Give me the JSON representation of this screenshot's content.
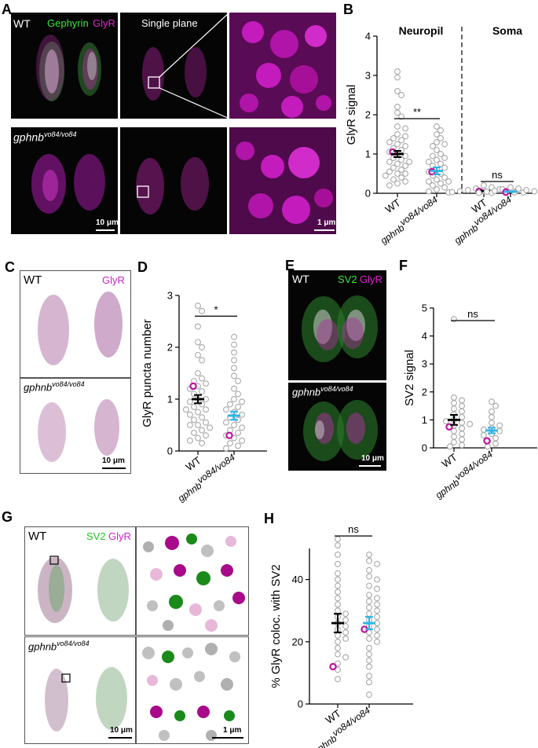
{
  "panels": {
    "a": {
      "letter": "A",
      "wt": "WT",
      "gephyrin": "Gephyrin",
      "glyr": "GlyR",
      "single_plane": "Single plane",
      "mutant": "gphnb",
      "mutant_sup": "vo84/vo84",
      "scale1": "10 μm",
      "scale2": "1 μm"
    },
    "b": {
      "letter": "B"
    },
    "c": {
      "letter": "C",
      "wt": "WT",
      "glyr": "GlyR",
      "mutant": "gphnb",
      "mutant_sup": "vo84/vo84",
      "scale": "10 μm"
    },
    "d": {
      "letter": "D"
    },
    "e": {
      "letter": "E",
      "wt": "WT",
      "sv2": "SV2",
      "glyr": "GlyR",
      "mutant": "gphnb",
      "mutant_sup": "vo84/vo84",
      "scale": "10 μm"
    },
    "f": {
      "letter": "F"
    },
    "g": {
      "letter": "G",
      "wt": "WT",
      "sv2": "SV2",
      "glyr": "GlyR",
      "mutant": "gphnb",
      "mutant_sup": "vo84/vo84",
      "scale1": "10 μm",
      "scale2": "1 μm"
    },
    "h": {
      "letter": "H"
    }
  },
  "colors": {
    "gray": "#a8a8a8",
    "magenta": "#c0139f",
    "cyan": "#29b6e6",
    "black": "#000000",
    "green": "#2ecc2e"
  },
  "chart_data": [
    {
      "id": "B",
      "type": "scatter",
      "ylabel": "GlyR signal",
      "ylim": [
        0,
        4
      ],
      "yticks": [
        0,
        1,
        2,
        3,
        4
      ],
      "regions": [
        {
          "label": "Neuropil"
        },
        {
          "label": "Soma"
        }
      ],
      "groups": [
        {
          "label": "WT",
          "mean": 1.0,
          "sem": 0.08,
          "color": "#000000",
          "highlight": 1.05,
          "values": [
            3.1,
            2.95,
            2.6,
            2.5,
            2.2,
            2.05,
            1.95,
            1.7,
            1.65,
            1.5,
            1.45,
            1.4,
            1.35,
            1.3,
            1.25,
            1.2,
            1.15,
            1.1,
            1.05,
            1.0,
            0.95,
            0.9,
            0.85,
            0.8,
            0.8,
            0.75,
            0.7,
            0.65,
            0.6,
            0.55,
            0.5,
            0.5,
            0.45,
            0.4,
            0.35,
            0.3,
            0.25,
            0.2
          ]
        },
        {
          "label": "gphnb",
          "sup": "vo84/vo84",
          "mean": 0.57,
          "sem": 0.09,
          "color": "#29b6e6",
          "highlight": 0.55,
          "values": [
            1.7,
            1.6,
            1.5,
            1.4,
            1.3,
            1.25,
            1.2,
            1.1,
            1.0,
            0.95,
            0.9,
            0.85,
            0.8,
            0.75,
            0.7,
            0.65,
            0.6,
            0.55,
            0.5,
            0.45,
            0.4,
            0.35,
            0.3,
            0.3,
            0.25,
            0.2,
            0.15,
            0.1,
            0.05,
            0.02
          ]
        },
        {
          "label": "WT",
          "mean": 0.06,
          "sem": 0.01,
          "color": "#000000",
          "highlight": 0.05,
          "values": [
            0.2,
            0.15,
            0.12,
            0.1,
            0.08,
            0.07,
            0.06,
            0.05,
            0.04,
            0.03,
            0.02,
            0.01
          ]
        },
        {
          "label": "gphnb",
          "sup": "vo84/vo84",
          "mean": 0.04,
          "sem": 0.01,
          "color": "#29b6e6",
          "highlight": 0.03,
          "values": [
            0.15,
            0.12,
            0.1,
            0.08,
            0.06,
            0.05,
            0.04,
            0.03,
            0.02,
            0.01
          ]
        }
      ],
      "significance": [
        {
          "between": [
            0,
            1
          ],
          "label": "**",
          "y": 1.9
        },
        {
          "between": [
            2,
            3
          ],
          "label": "ns",
          "y": 0.3
        }
      ]
    },
    {
      "id": "D",
      "type": "scatter",
      "ylabel": "GlyR puncta number",
      "ylim": [
        0,
        3
      ],
      "yticks": [
        0,
        1,
        2,
        3
      ],
      "groups": [
        {
          "label": "WT",
          "mean": 1.0,
          "sem": 0.08,
          "color": "#000000",
          "highlight": 1.25,
          "values": [
            2.8,
            2.7,
            2.4,
            2.1,
            2.0,
            1.85,
            1.75,
            1.5,
            1.4,
            1.35,
            1.3,
            1.25,
            1.2,
            1.15,
            1.1,
            1.0,
            1.0,
            0.95,
            0.9,
            0.85,
            0.8,
            0.8,
            0.75,
            0.7,
            0.65,
            0.6,
            0.55,
            0.5,
            0.5,
            0.45,
            0.4,
            0.35,
            0.3,
            0.25,
            0.2,
            0.15
          ]
        },
        {
          "label": "gphnb",
          "sup": "vo84/vo84",
          "mean": 0.68,
          "sem": 0.08,
          "color": "#29b6e6",
          "highlight": 0.3,
          "values": [
            2.2,
            2.05,
            1.9,
            1.75,
            1.6,
            1.45,
            1.35,
            1.2,
            1.1,
            1.0,
            0.95,
            0.9,
            0.85,
            0.8,
            0.75,
            0.7,
            0.65,
            0.6,
            0.55,
            0.5,
            0.45,
            0.4,
            0.35,
            0.3,
            0.25,
            0.2,
            0.15,
            0.1,
            0.05
          ]
        }
      ],
      "significance": [
        {
          "between": [
            0,
            1
          ],
          "label": "*",
          "y": 2.6
        }
      ]
    },
    {
      "id": "F",
      "type": "scatter",
      "ylabel": "SV2 signal",
      "ylim": [
        0,
        5
      ],
      "yticks": [
        0,
        1,
        2,
        3,
        4,
        5
      ],
      "groups": [
        {
          "label": "WT",
          "mean": 1.0,
          "sem": 0.18,
          "color": "#000000",
          "highlight": 0.75,
          "values": [
            4.6,
            1.8,
            1.7,
            1.6,
            1.5,
            1.4,
            1.3,
            1.2,
            1.1,
            1.0,
            0.95,
            0.9,
            0.85,
            0.8,
            0.7,
            0.6,
            0.5,
            0.4,
            0.3,
            0.2,
            0.1,
            0.05
          ]
        },
        {
          "label": "gphnb",
          "sup": "vo84/vo84",
          "mean": 0.62,
          "sem": 0.1,
          "color": "#29b6e6",
          "highlight": 0.25,
          "values": [
            1.65,
            1.5,
            1.3,
            1.1,
            0.9,
            0.8,
            0.7,
            0.65,
            0.6,
            0.5,
            0.45,
            0.35,
            0.25,
            0.15,
            0.05
          ]
        }
      ],
      "significance": [
        {
          "between": [
            0,
            1
          ],
          "label": "ns",
          "y": 4.55
        }
      ]
    },
    {
      "id": "H",
      "type": "scatter",
      "ylabel": "% GlyR coloc. with SV2",
      "ylim": [
        0,
        50
      ],
      "yticks": [
        0,
        20,
        40
      ],
      "groups": [
        {
          "label": "WT",
          "mean": 26,
          "sem": 3,
          "color": "#000000",
          "highlight": 12,
          "values": [
            53,
            51,
            48,
            45,
            42,
            40,
            38,
            36,
            34,
            32,
            30,
            29,
            28,
            27,
            26,
            25,
            24,
            23,
            22,
            21,
            20,
            18,
            16,
            15,
            13,
            11,
            8
          ]
        },
        {
          "label": "gphnb",
          "sup": "vo84/vo84",
          "mean": 26,
          "sem": 2,
          "color": "#29b6e6",
          "highlight": 24,
          "values": [
            48,
            46,
            45,
            43,
            41,
            40,
            38,
            37,
            35,
            34,
            33,
            32,
            31,
            30,
            29,
            28,
            27,
            26,
            25,
            24,
            23,
            22,
            21,
            20,
            18,
            16,
            14,
            12,
            9,
            7,
            3
          ]
        }
      ],
      "significance": [
        {
          "between": [
            0,
            1
          ],
          "label": "ns",
          "y": 54
        }
      ]
    }
  ]
}
